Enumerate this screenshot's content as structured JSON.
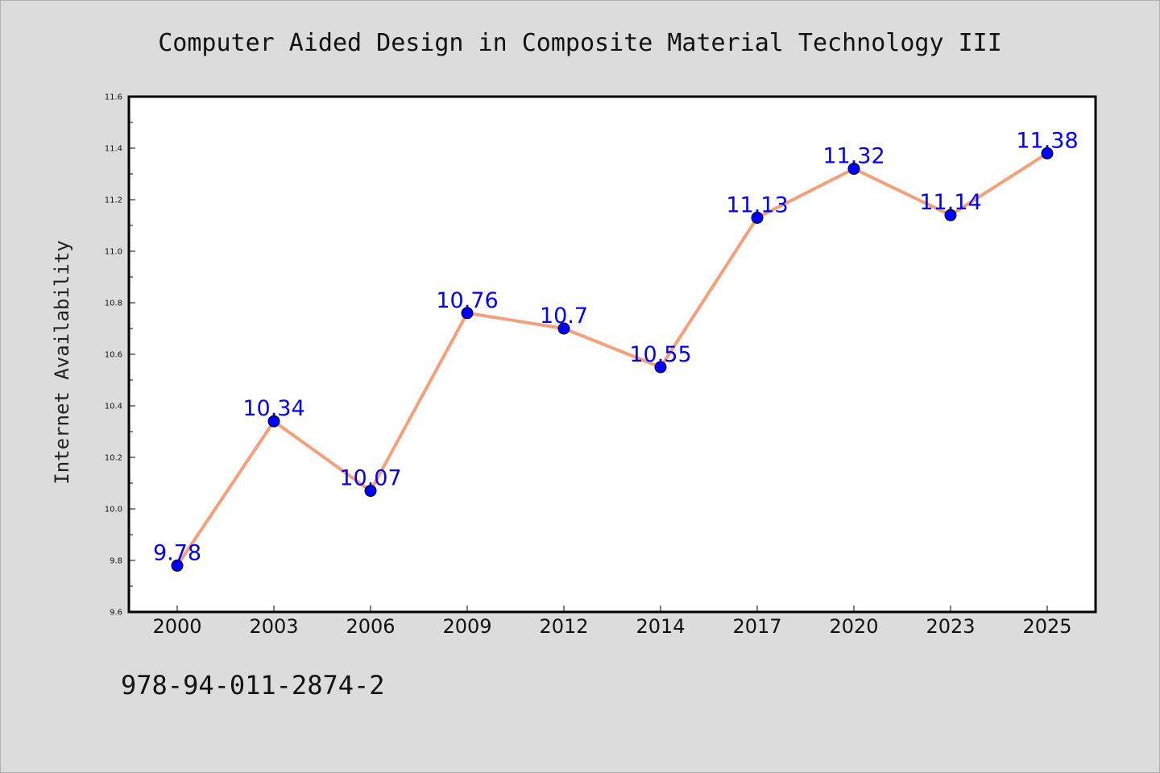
{
  "chart_data": {
    "type": "line",
    "title": "Computer Aided Design in Composite Material Technology III",
    "xlabel": "",
    "ylabel": "Internet Availability",
    "categories": [
      "2000",
      "2003",
      "2006",
      "2009",
      "2012",
      "2014",
      "2017",
      "2020",
      "2023",
      "2025"
    ],
    "values": [
      9.78,
      10.34,
      10.07,
      10.76,
      10.7,
      10.55,
      11.13,
      11.32,
      11.14,
      11.38
    ],
    "data_labels": [
      "9.78",
      "10.34",
      "10.07",
      "10.76",
      "10.7",
      "10.55",
      "11.13",
      "11.32",
      "11.14",
      "11.38"
    ],
    "ylim": [
      9.6,
      11.6
    ],
    "y_ticks": [
      "9.6",
      "9.8",
      "10.0",
      "10.2",
      "10.4",
      "10.6",
      "10.8",
      "11.0",
      "11.2",
      "11.4",
      "11.6"
    ],
    "grid": false,
    "line_color": "#f4a07a",
    "marker_color": "#0000ff",
    "label_color": "#0000ff"
  },
  "footer": {
    "isbn": "978-94-011-2874-2"
  }
}
